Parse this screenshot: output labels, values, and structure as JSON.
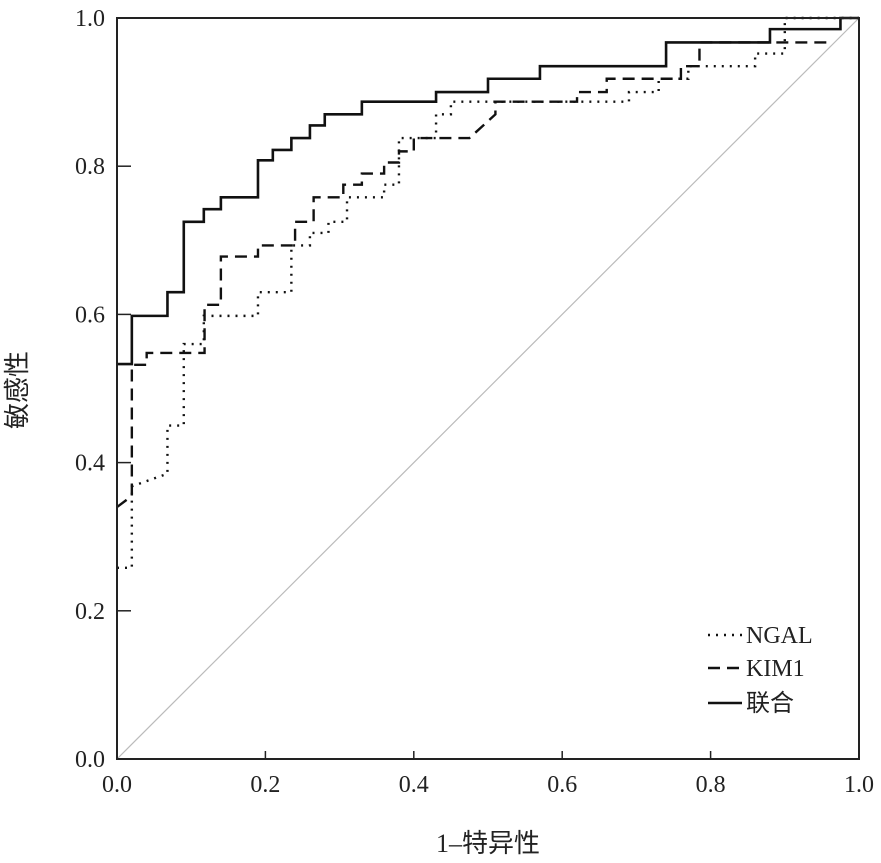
{
  "chart_data": {
    "type": "line",
    "title": "",
    "xlabel": "1–特异性",
    "ylabel": "敏感性",
    "xlim": [
      0,
      1
    ],
    "ylim": [
      0,
      1
    ],
    "xticks": [
      "0.0",
      "0.2",
      "0.4",
      "0.6",
      "0.8",
      "1.0"
    ],
    "yticks": [
      "0.0",
      "0.2",
      "0.4",
      "0.6",
      "0.8",
      "1.0"
    ],
    "grid": false,
    "legend_position": "bottom-right",
    "reference_line": {
      "x": [
        0,
        1
      ],
      "y": [
        0,
        1
      ],
      "color": "#bbbbbb"
    },
    "series": [
      {
        "name": "NGAL",
        "style": "dotted",
        "step_points": [
          [
            0,
            0.258
          ],
          [
            0.02,
            0.258
          ],
          [
            0.02,
            0.368
          ],
          [
            0.068,
            0.385
          ],
          [
            0.068,
            0.45
          ],
          [
            0.09,
            0.45
          ],
          [
            0.09,
            0.56
          ],
          [
            0.117,
            0.56
          ],
          [
            0.117,
            0.598
          ],
          [
            0.19,
            0.598
          ],
          [
            0.19,
            0.63
          ],
          [
            0.235,
            0.63
          ],
          [
            0.235,
            0.693
          ],
          [
            0.26,
            0.693
          ],
          [
            0.26,
            0.71
          ],
          [
            0.285,
            0.71
          ],
          [
            0.285,
            0.725
          ],
          [
            0.31,
            0.725
          ],
          [
            0.31,
            0.758
          ],
          [
            0.36,
            0.758
          ],
          [
            0.36,
            0.775
          ],
          [
            0.38,
            0.775
          ],
          [
            0.38,
            0.838
          ],
          [
            0.43,
            0.838
          ],
          [
            0.43,
            0.87
          ],
          [
            0.45,
            0.87
          ],
          [
            0.45,
            0.887
          ],
          [
            0.6,
            0.887
          ],
          [
            0.69,
            0.887
          ],
          [
            0.69,
            0.9
          ],
          [
            0.73,
            0.9
          ],
          [
            0.73,
            0.918
          ],
          [
            0.77,
            0.918
          ],
          [
            0.77,
            0.935
          ],
          [
            0.86,
            0.935
          ],
          [
            0.86,
            0.952
          ],
          [
            0.9,
            0.952
          ],
          [
            0.9,
            1.0
          ],
          [
            1.0,
            1.0
          ]
        ]
      },
      {
        "name": "KIM1",
        "style": "dashed",
        "step_points": [
          [
            0,
            0.34
          ],
          [
            0.02,
            0.355
          ],
          [
            0.02,
            0.532
          ],
          [
            0.04,
            0.532
          ],
          [
            0.04,
            0.548
          ],
          [
            0.118,
            0.548
          ],
          [
            0.118,
            0.613
          ],
          [
            0.14,
            0.613
          ],
          [
            0.14,
            0.678
          ],
          [
            0.19,
            0.678
          ],
          [
            0.19,
            0.693
          ],
          [
            0.24,
            0.693
          ],
          [
            0.24,
            0.725
          ],
          [
            0.265,
            0.725
          ],
          [
            0.265,
            0.758
          ],
          [
            0.305,
            0.758
          ],
          [
            0.305,
            0.775
          ],
          [
            0.33,
            0.775
          ],
          [
            0.33,
            0.79
          ],
          [
            0.36,
            0.79
          ],
          [
            0.36,
            0.805
          ],
          [
            0.38,
            0.805
          ],
          [
            0.38,
            0.82
          ],
          [
            0.4,
            0.82
          ],
          [
            0.4,
            0.838
          ],
          [
            0.475,
            0.838
          ],
          [
            0.51,
            0.87
          ],
          [
            0.51,
            0.887
          ],
          [
            0.62,
            0.887
          ],
          [
            0.62,
            0.9
          ],
          [
            0.66,
            0.9
          ],
          [
            0.66,
            0.918
          ],
          [
            0.76,
            0.918
          ],
          [
            0.76,
            0.935
          ],
          [
            0.785,
            0.935
          ],
          [
            0.785,
            0.967
          ],
          [
            0.88,
            0.967
          ],
          [
            0.96,
            0.967
          ]
        ]
      },
      {
        "name": "联合",
        "style": "solid",
        "step_points": [
          [
            0,
            0.533
          ],
          [
            0.02,
            0.533
          ],
          [
            0.02,
            0.598
          ],
          [
            0.068,
            0.598
          ],
          [
            0.068,
            0.63
          ],
          [
            0.09,
            0.63
          ],
          [
            0.09,
            0.725
          ],
          [
            0.117,
            0.725
          ],
          [
            0.117,
            0.742
          ],
          [
            0.14,
            0.742
          ],
          [
            0.14,
            0.758
          ],
          [
            0.19,
            0.758
          ],
          [
            0.19,
            0.808
          ],
          [
            0.21,
            0.808
          ],
          [
            0.21,
            0.822
          ],
          [
            0.235,
            0.822
          ],
          [
            0.235,
            0.838
          ],
          [
            0.26,
            0.838
          ],
          [
            0.26,
            0.855
          ],
          [
            0.28,
            0.855
          ],
          [
            0.28,
            0.87
          ],
          [
            0.33,
            0.87
          ],
          [
            0.33,
            0.887
          ],
          [
            0.43,
            0.887
          ],
          [
            0.43,
            0.9
          ],
          [
            0.5,
            0.9
          ],
          [
            0.5,
            0.918
          ],
          [
            0.57,
            0.918
          ],
          [
            0.57,
            0.935
          ],
          [
            0.74,
            0.935
          ],
          [
            0.74,
            0.967
          ],
          [
            0.88,
            0.967
          ],
          [
            0.88,
            0.985
          ],
          [
            0.975,
            0.985
          ],
          [
            0.975,
            1.0
          ],
          [
            1.0,
            1.0
          ]
        ]
      }
    ]
  }
}
